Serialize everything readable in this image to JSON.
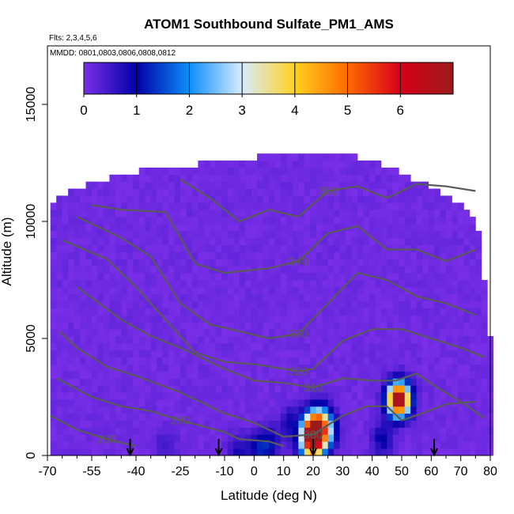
{
  "chart_data": {
    "type": "heatmap",
    "title": "ATOM1 Southbound Sulfate_PM1_AMS",
    "subtitle_flights": "Flts: 2,3,4,5,6",
    "subtitle_dates": "MMDD: 0801,0803,0806,0808,0812",
    "xlabel": "Latitude (deg N)",
    "ylabel": "Altitude (m)",
    "xlim": [
      -70,
      80
    ],
    "ylim": [
      0,
      17500
    ],
    "x_ticks": [
      -70,
      -55,
      -40,
      -25,
      -10,
      0,
      10,
      20,
      30,
      40,
      50,
      60,
      70,
      80
    ],
    "y_ticks": [
      0,
      5000,
      10000,
      15000
    ],
    "colorbar": {
      "range": [
        0,
        7
      ],
      "ticks": [
        0,
        1,
        2,
        3,
        4,
        5,
        6
      ],
      "colors": [
        "#7b2fe8",
        "#0000a8",
        "#0b8ff7",
        "#d6ecff",
        "#ffd21f",
        "#ff6a00",
        "#d6001a",
        "#9b1b1b"
      ]
    },
    "background_value": 0.1,
    "hotspots": [
      {
        "lat": 20.5,
        "alt": 900,
        "value": 4.2
      },
      {
        "lat": 19.5,
        "alt": 1200,
        "value": 3.0
      },
      {
        "lat": 22.5,
        "alt": 1500,
        "value": 2.3
      },
      {
        "lat": 18.5,
        "alt": 500,
        "value": 2.2
      },
      {
        "lat": 24.5,
        "alt": 1000,
        "value": 2.1
      },
      {
        "lat": 20.5,
        "alt": 300,
        "value": 1.8
      },
      {
        "lat": 5.5,
        "alt": 500,
        "value": 0.9
      },
      {
        "lat": 1.5,
        "alt": 300,
        "value": 1.0
      },
      {
        "lat": -5.5,
        "alt": 200,
        "value": 0.8
      },
      {
        "lat": 43.5,
        "alt": 700,
        "value": 1.0
      },
      {
        "lat": 50.5,
        "alt": 2400,
        "value": 2.0
      },
      {
        "lat": 48.5,
        "alt": 2400,
        "value": 6.0
      },
      {
        "lat": -30,
        "alt": 500,
        "value": 0.5
      },
      {
        "lat": 12,
        "alt": 1400,
        "value": 0.8
      }
    ],
    "theta_contours": [
      {
        "label": "280",
        "points": [
          [
            -69,
            1700
          ],
          [
            -60,
            1100
          ],
          [
            -50,
            700
          ],
          [
            -40,
            400
          ]
        ]
      },
      {
        "label": "290",
        "points": [
          [
            -67,
            3300
          ],
          [
            -55,
            2500
          ],
          [
            -45,
            2100
          ],
          [
            -35,
            1900
          ],
          [
            -25,
            1500
          ],
          [
            -10,
            1000
          ],
          [
            -5,
            700
          ],
          [
            5,
            600
          ],
          [
            10,
            400
          ]
        ]
      },
      {
        "label": "300",
        "points": [
          [
            -66,
            5300
          ],
          [
            -60,
            4600
          ],
          [
            -50,
            3800
          ],
          [
            -40,
            3400
          ],
          [
            -25,
            2700
          ],
          [
            -10,
            1800
          ],
          [
            0,
            1400
          ],
          [
            10,
            800
          ],
          [
            20,
            900
          ],
          [
            30,
            1700
          ],
          [
            38,
            2100
          ],
          [
            45,
            2100
          ],
          [
            50,
            1500
          ],
          [
            57,
            1800
          ],
          [
            65,
            2200
          ],
          [
            75,
            2300
          ]
        ]
      },
      {
        "label": "310",
        "points": [
          [
            -60,
            7200
          ],
          [
            -45,
            5800
          ],
          [
            -35,
            5100
          ],
          [
            -25,
            4600
          ],
          [
            -10,
            3700
          ],
          [
            0,
            3200
          ],
          [
            10,
            3100
          ],
          [
            20,
            2900
          ],
          [
            30,
            3300
          ],
          [
            40,
            3200
          ],
          [
            48,
            3200
          ],
          [
            55,
            3500
          ],
          [
            62,
            2900
          ],
          [
            70,
            2300
          ],
          [
            78,
            1600
          ]
        ]
      },
      {
        "label": "320",
        "points": [
          [
            -65,
            9200
          ],
          [
            -50,
            8400
          ],
          [
            -40,
            7200
          ],
          [
            -30,
            5800
          ],
          [
            -20,
            4400
          ],
          [
            -10,
            4000
          ],
          [
            0,
            3900
          ],
          [
            10,
            3700
          ],
          [
            15,
            3600
          ],
          [
            20,
            3700
          ],
          [
            30,
            4900
          ],
          [
            40,
            5400
          ],
          [
            50,
            5400
          ],
          [
            60,
            5000
          ],
          [
            70,
            4600
          ],
          [
            78,
            4200
          ]
        ]
      },
      {
        "label": "330",
        "points": [
          [
            -60,
            10200
          ],
          [
            -45,
            9300
          ],
          [
            -35,
            8500
          ],
          [
            -25,
            6500
          ],
          [
            -15,
            5600
          ],
          [
            -5,
            5300
          ],
          [
            5,
            5000
          ],
          [
            15,
            5200
          ],
          [
            25,
            6500
          ],
          [
            35,
            7800
          ],
          [
            45,
            7500
          ],
          [
            55,
            6800
          ],
          [
            65,
            6500
          ],
          [
            75,
            6000
          ]
        ]
      },
      {
        "label": "340",
        "points": [
          [
            -55,
            10700
          ],
          [
            -45,
            10500
          ],
          [
            -30,
            10400
          ],
          [
            -20,
            8200
          ],
          [
            -10,
            7800
          ],
          [
            5,
            8000
          ],
          [
            15,
            8300
          ],
          [
            25,
            9500
          ],
          [
            35,
            9800
          ],
          [
            45,
            8800
          ],
          [
            55,
            8800
          ],
          [
            65,
            8300
          ],
          [
            75,
            8800
          ]
        ]
      },
      {
        "label": "350",
        "points": [
          [
            -25,
            11800
          ],
          [
            -15,
            11000
          ],
          [
            -5,
            10000
          ],
          [
            5,
            10500
          ],
          [
            15,
            10200
          ],
          [
            25,
            11300
          ],
          [
            35,
            11500
          ],
          [
            45,
            11000
          ],
          [
            55,
            11600
          ],
          [
            65,
            11500
          ],
          [
            75,
            11300
          ]
        ]
      }
    ],
    "flight_arrows_lat": [
      -42,
      -12,
      20,
      61
    ]
  }
}
